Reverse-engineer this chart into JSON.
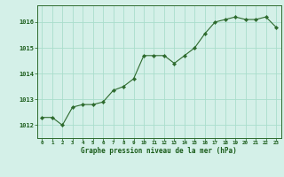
{
  "x": [
    0,
    1,
    2,
    3,
    4,
    5,
    6,
    7,
    8,
    9,
    10,
    11,
    12,
    13,
    14,
    15,
    16,
    17,
    18,
    19,
    20,
    21,
    22,
    23
  ],
  "y": [
    1012.3,
    1012.3,
    1012.0,
    1012.7,
    1012.8,
    1012.8,
    1012.9,
    1013.35,
    1013.5,
    1013.8,
    1014.7,
    1014.7,
    1014.7,
    1014.4,
    1014.7,
    1015.0,
    1015.55,
    1016.0,
    1016.1,
    1016.2,
    1016.1,
    1016.1,
    1016.2,
    1015.8
  ],
  "line_color": "#2d6a2d",
  "marker_color": "#2d6a2d",
  "bg_color": "#d4f0e8",
  "grid_color": "#aaddcc",
  "xlabel": "Graphe pression niveau de la mer (hPa)",
  "xlabel_color": "#1a5c1a",
  "ylabel_left": [
    "1012",
    "1013",
    "1014",
    "1015",
    "1016"
  ],
  "yticks": [
    1012,
    1013,
    1014,
    1015,
    1016
  ],
  "ylim": [
    1011.5,
    1016.65
  ],
  "xlim": [
    -0.5,
    23.5
  ],
  "xticks": [
    0,
    1,
    2,
    3,
    4,
    5,
    6,
    7,
    8,
    9,
    10,
    11,
    12,
    13,
    14,
    15,
    16,
    17,
    18,
    19,
    20,
    21,
    22,
    23
  ],
  "tick_color": "#1a5c1a",
  "spine_color": "#2d6a2d"
}
